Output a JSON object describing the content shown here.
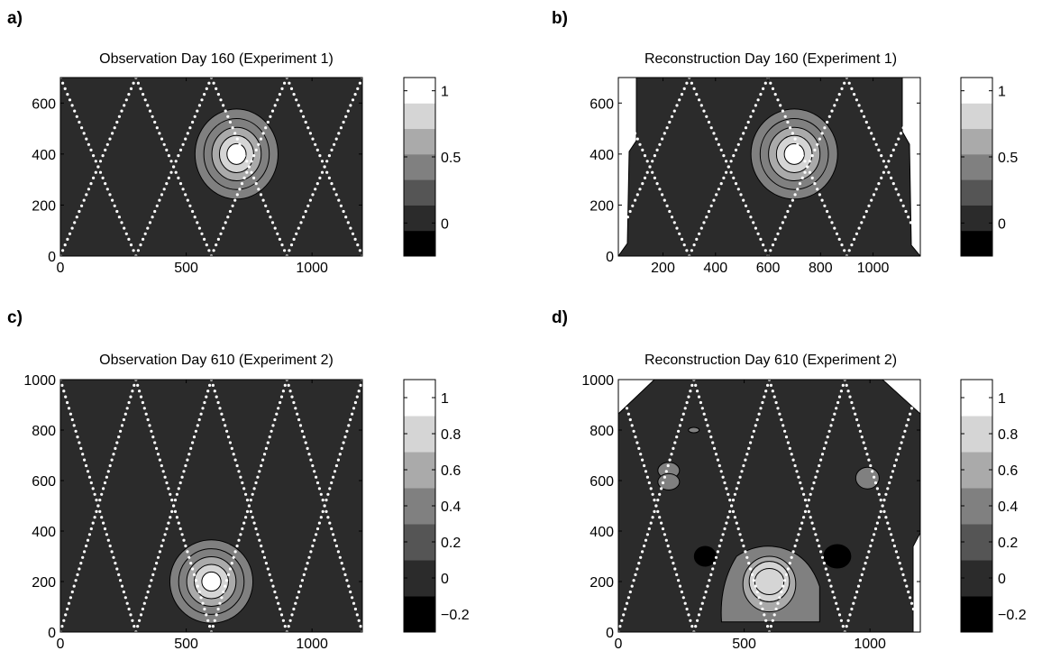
{
  "colors": {
    "background": "#2b2b2b",
    "track_dots": "#ffffff",
    "contour_line": "#000000",
    "levels": [
      "#000000",
      "#2b2b2b",
      "#555555",
      "#808080",
      "#aaaaaa",
      "#d5d5d5",
      "#ffffff"
    ]
  },
  "chart_data": [
    {
      "panel": "a)",
      "type": "heatmap",
      "title": "Observation Day 160 (Experiment 1)",
      "xlim": [
        0,
        1200
      ],
      "ylim": [
        0,
        700
      ],
      "xticks": [
        0,
        500,
        1000
      ],
      "yticks": [
        0,
        200,
        400,
        600
      ],
      "colorbar_ticks": [
        0,
        0.5,
        1
      ],
      "colorbar_range": [
        -0.25,
        1.1
      ],
      "feature": {
        "kind": "gaussian",
        "center": [
          700,
          400
        ],
        "contours": [
          0.2,
          0.4,
          0.6,
          0.8,
          1.0
        ],
        "radii": [
          165,
          130,
          98,
          68,
          38
        ]
      }
    },
    {
      "panel": "b)",
      "type": "heatmap",
      "title": "Reconstruction Day 160 (Experiment 1)",
      "xlim": [
        30,
        1180
      ],
      "ylim": [
        0,
        700
      ],
      "xticks": [
        200,
        400,
        600,
        800,
        1000
      ],
      "yticks": [
        0,
        200,
        400,
        600
      ],
      "colorbar_ticks": [
        0,
        0.5,
        1
      ],
      "colorbar_range": [
        -0.25,
        1.1
      ],
      "feature": {
        "kind": "gaussian",
        "center": [
          700,
          400
        ],
        "contours": [
          0.2,
          0.4,
          0.6,
          0.8,
          1.0
        ],
        "radii": [
          165,
          130,
          98,
          68,
          38
        ]
      }
    },
    {
      "panel": "c)",
      "type": "heatmap",
      "title": "Observation Day 610 (Experiment 2)",
      "xlim": [
        0,
        1200
      ],
      "ylim": [
        0,
        1000
      ],
      "xticks": [
        0,
        500,
        1000
      ],
      "yticks": [
        0,
        200,
        400,
        600,
        800,
        1000
      ],
      "colorbar_ticks": [
        -0.2,
        0,
        0.2,
        0.4,
        0.6,
        0.8,
        1
      ],
      "colorbar_range": [
        -0.3,
        1.1
      ],
      "feature": {
        "kind": "gaussian",
        "center": [
          600,
          200
        ],
        "contours": [
          0.2,
          0.4,
          0.6,
          0.8,
          1.0
        ],
        "radii": [
          165,
          130,
          98,
          68,
          38
        ]
      }
    },
    {
      "panel": "d)",
      "type": "heatmap",
      "title": "Reconstruction Day 610 (Experiment 2)",
      "xlim": [
        0,
        1200
      ],
      "ylim": [
        0,
        1000
      ],
      "xticks": [
        0,
        500,
        1000
      ],
      "yticks": [
        0,
        200,
        400,
        600,
        800,
        1000
      ],
      "colorbar_ticks": [
        -0.2,
        0,
        0.2,
        0.4,
        0.6,
        0.8,
        1
      ],
      "colorbar_range": [
        -0.3,
        1.1
      ],
      "feature": {
        "kind": "reconstruction",
        "center": [
          600,
          200
        ]
      }
    }
  ]
}
